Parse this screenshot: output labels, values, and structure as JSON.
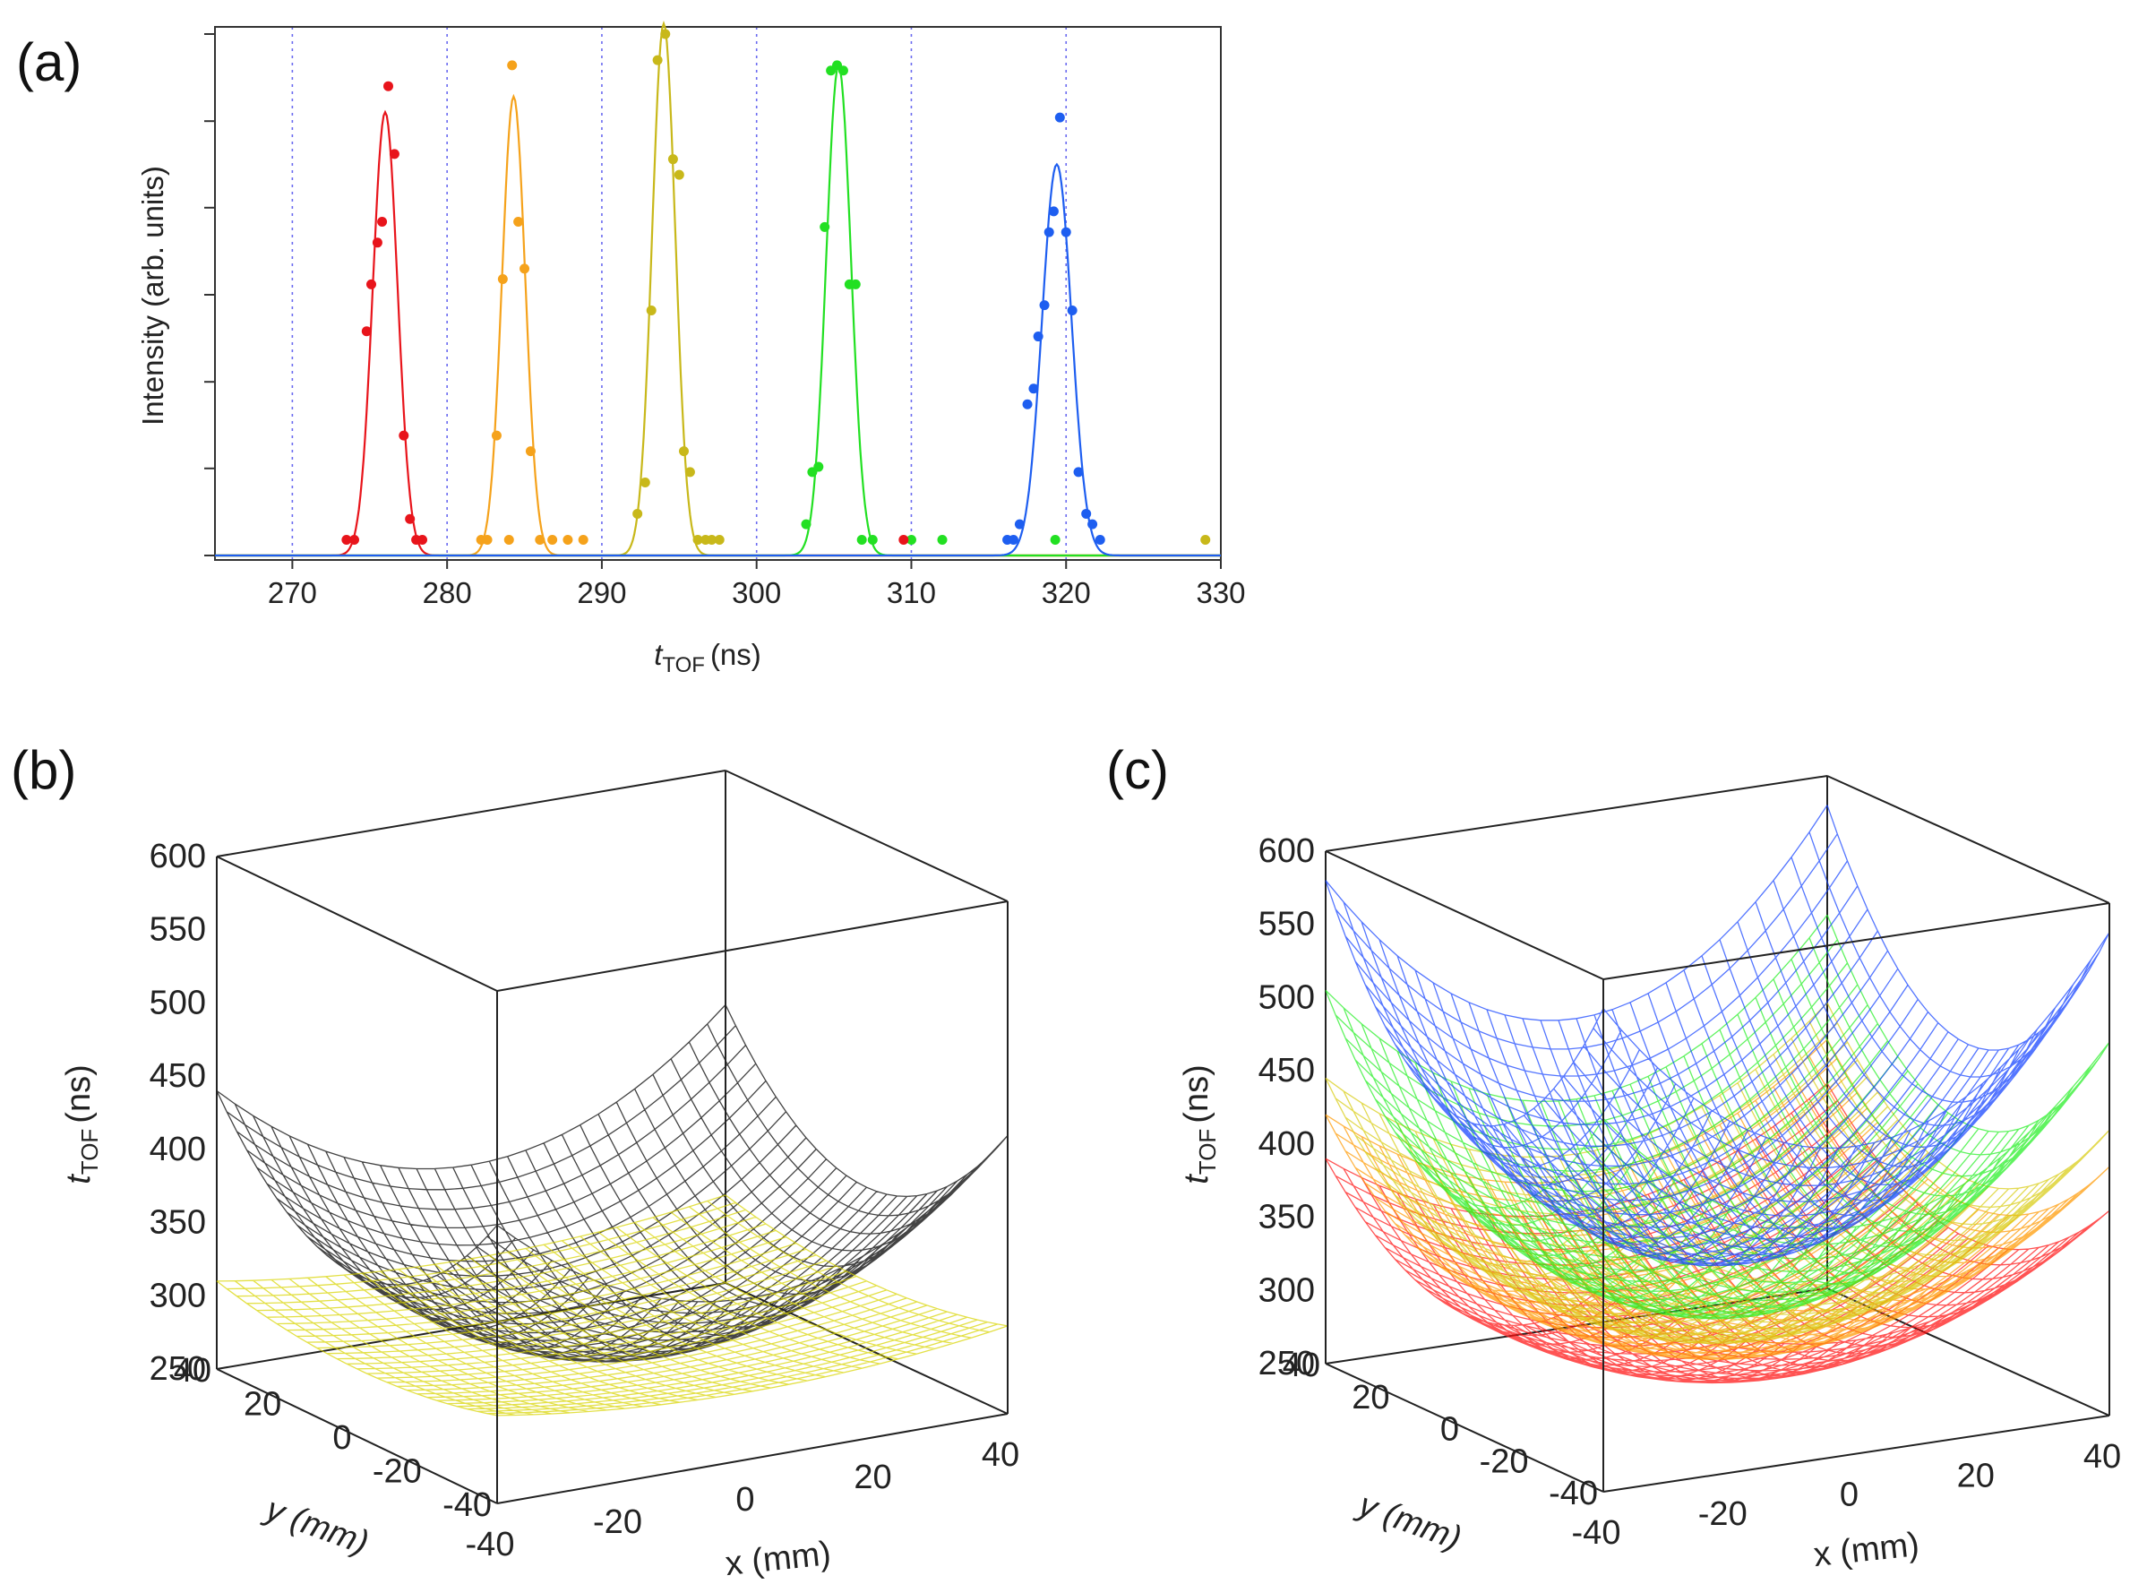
{
  "panels": {
    "a": {
      "label": "(a)"
    },
    "b": {
      "label": "(b)"
    },
    "c": {
      "label": "(c)"
    }
  },
  "chart_data": [
    {
      "id": "a",
      "type": "scatter",
      "ylabel": "Intensity (arb. units)",
      "xlabel_main": "t",
      "xlabel_sub": "TOF",
      "xlabel_unit": "(ns)",
      "xlim": [
        265,
        330
      ],
      "ylim": [
        0,
        1.0
      ],
      "xticks": [
        270,
        280,
        290,
        300,
        310,
        320,
        330
      ],
      "yticks": [
        0,
        0.167,
        0.333,
        0.5,
        0.667,
        0.833,
        1.0
      ],
      "grid": "vertical dotted",
      "series": [
        {
          "color": "#e8141b",
          "center": 276.0,
          "sigma": 0.8,
          "peak": 0.85,
          "points": [
            [
              273.5,
              0.03
            ],
            [
              274,
              0.03
            ],
            [
              274.8,
              0.43
            ],
            [
              275.1,
              0.52
            ],
            [
              275.5,
              0.6
            ],
            [
              275.8,
              0.64
            ],
            [
              276.2,
              0.9
            ],
            [
              276.6,
              0.77
            ],
            [
              277.2,
              0.23
            ],
            [
              277.6,
              0.07
            ],
            [
              278,
              0.03
            ],
            [
              278.4,
              0.03
            ]
          ]
        },
        {
          "color": "#f5a21b",
          "center": 284.3,
          "sigma": 0.75,
          "peak": 0.88,
          "points": [
            [
              282.2,
              0.03
            ],
            [
              282.6,
              0.03
            ],
            [
              283.2,
              0.23
            ],
            [
              283.6,
              0.53
            ],
            [
              284.0,
              0.03
            ],
            [
              284.2,
              0.94
            ],
            [
              284.6,
              0.64
            ],
            [
              285.0,
              0.55
            ],
            [
              285.4,
              0.2
            ],
            [
              286,
              0.03
            ],
            [
              286.8,
              0.03
            ],
            [
              287.8,
              0.03
            ],
            [
              288.8,
              0.03
            ]
          ]
        },
        {
          "color": "#c8b81a",
          "center": 294.0,
          "sigma": 0.75,
          "peak": 1.02,
          "points": [
            [
              292.3,
              0.08
            ],
            [
              292.8,
              0.14
            ],
            [
              293.2,
              0.47
            ],
            [
              293.6,
              0.95
            ],
            [
              294.1,
              1.0
            ],
            [
              294.6,
              0.76
            ],
            [
              295.0,
              0.73
            ],
            [
              295.3,
              0.2
            ],
            [
              295.7,
              0.16
            ],
            [
              296.2,
              0.03
            ],
            [
              296.7,
              0.03
            ],
            [
              297.1,
              0.03
            ],
            [
              297.6,
              0.03
            ],
            [
              329,
              0.03
            ]
          ]
        },
        {
          "color": "#22e022",
          "center": 305.3,
          "sigma": 0.8,
          "peak": 0.94,
          "points": [
            [
              303.2,
              0.06
            ],
            [
              303.6,
              0.16
            ],
            [
              304.0,
              0.17
            ],
            [
              304.4,
              0.63
            ],
            [
              304.8,
              0.93
            ],
            [
              305.2,
              0.94
            ],
            [
              305.6,
              0.93
            ],
            [
              306.0,
              0.52
            ],
            [
              306.4,
              0.52
            ],
            [
              306.8,
              0.03
            ],
            [
              307.5,
              0.03
            ],
            [
              310,
              0.03
            ],
            [
              312,
              0.03
            ],
            [
              319.3,
              0.03
            ]
          ]
        },
        {
          "color": "#1e5ef0",
          "center": 319.4,
          "sigma": 0.95,
          "peak": 0.75,
          "points": [
            [
              316.2,
              0.03
            ],
            [
              316.6,
              0.03
            ],
            [
              317,
              0.06
            ],
            [
              317.5,
              0.29
            ],
            [
              317.9,
              0.32
            ],
            [
              318.2,
              0.42
            ],
            [
              318.6,
              0.48
            ],
            [
              318.9,
              0.62
            ],
            [
              319.2,
              0.66
            ],
            [
              319.6,
              0.84
            ],
            [
              320.0,
              0.62
            ],
            [
              320.4,
              0.47
            ],
            [
              320.8,
              0.16
            ],
            [
              321.3,
              0.08
            ],
            [
              321.7,
              0.06
            ],
            [
              322.2,
              0.03
            ]
          ]
        }
      ],
      "stray_points": [
        {
          "color": "#e8141b",
          "x": 309.5,
          "y": 0.03
        }
      ]
    },
    {
      "id": "b",
      "type": "surface3d",
      "zlabel_main": "t",
      "zlabel_sub": "TOF",
      "zlabel_unit": "(ns)",
      "xlabel": "x (mm)",
      "ylabel": "y (mm)",
      "zticks": [
        250,
        300,
        350,
        400,
        450,
        500,
        550,
        600
      ],
      "xticks": [
        -40,
        -20,
        0,
        20,
        40
      ],
      "yticks": [
        40,
        20,
        0,
        -20,
        -40
      ],
      "zlim": [
        250,
        600
      ],
      "surfaces": [
        {
          "color": "#222222",
          "min": 280,
          "corner": 440
        },
        {
          "color": "#d8d400",
          "min": 282,
          "corner": 310
        }
      ]
    },
    {
      "id": "c",
      "type": "surface3d",
      "zlabel_main": "t",
      "zlabel_sub": "TOF",
      "zlabel_unit": "(ns)",
      "xlabel": "x (mm)",
      "ylabel": "y (mm)",
      "zticks": [
        250,
        300,
        350,
        400,
        450,
        500,
        550,
        600
      ],
      "xticks": [
        -40,
        -20,
        0,
        20,
        40
      ],
      "yticks": [
        40,
        20,
        0,
        -20,
        -40
      ],
      "zlim": [
        250,
        600
      ],
      "surfaces": [
        {
          "color": "#ff1010",
          "min": 265,
          "corner": 390
        },
        {
          "color": "#ff9900",
          "min": 280,
          "corner": 420
        },
        {
          "color": "#d8cc10",
          "min": 290,
          "corner": 445
        },
        {
          "color": "#22ee22",
          "min": 305,
          "corner": 505
        },
        {
          "color": "#1040ff",
          "min": 340,
          "corner": 580
        }
      ]
    }
  ]
}
